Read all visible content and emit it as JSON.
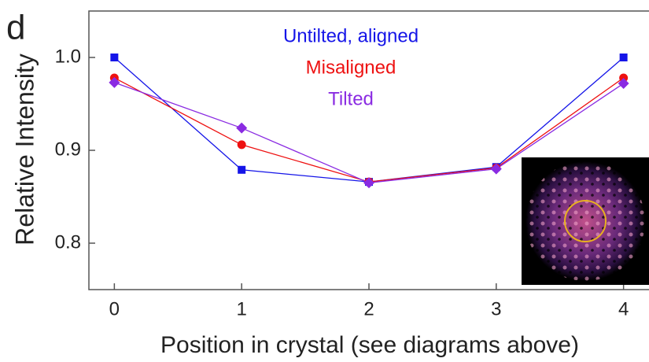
{
  "chart_data": {
    "type": "line",
    "panel_label": "d",
    "x_label": "Position in crystal (see diagrams above)",
    "y_label": "Relative Intensity",
    "x": [
      0,
      1,
      2,
      3,
      4
    ],
    "series": [
      {
        "name": "Untilted, aligned",
        "color": "#1515e8",
        "marker": "square",
        "values": [
          1.0,
          0.879,
          0.866,
          0.882,
          1.0
        ]
      },
      {
        "name": "Misaligned",
        "color": "#ee1111",
        "marker": "circle",
        "values": [
          0.978,
          0.906,
          0.866,
          0.881,
          0.978
        ]
      },
      {
        "name": "Tilted",
        "color": "#8a2be2",
        "marker": "diamond",
        "values": [
          0.973,
          0.924,
          0.865,
          0.88,
          0.972
        ]
      }
    ],
    "xlim": [
      -0.2,
      4.2
    ],
    "ylim": [
      0.75,
      1.05
    ],
    "xticks": [
      0,
      1,
      2,
      3,
      4
    ],
    "yticks": [
      0.8,
      0.9,
      {
        "value": 1,
        "label": "1.0"
      }
    ],
    "grid": false
  }
}
